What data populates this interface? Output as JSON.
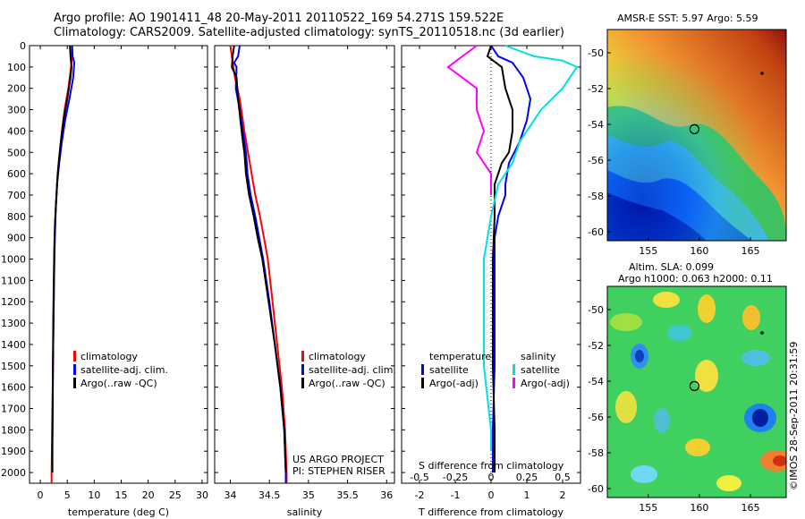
{
  "header": {
    "line1": "Argo profile: AO 1901411_48 20-May-2011 20110522_169 54.271S 159.522E",
    "line2": "Climatology: CARS2009. Satellite-adjusted climatology: synTS_20110518.nc (3d earlier)"
  },
  "colors": {
    "climatology": "#ff0000",
    "satellite": "#0000ff",
    "argo": "#000000",
    "sat_sal": "#00e0e0",
    "argo_sal": "#ff00ff"
  },
  "chart_data": [
    {
      "type": "line",
      "xlabel": "temperature (deg C)",
      "xlim": [
        -2,
        31
      ],
      "ylim": [
        2050,
        0
      ],
      "xticks": [
        0,
        5,
        10,
        15,
        20,
        25,
        30
      ],
      "yticks": [
        0,
        100,
        200,
        300,
        400,
        500,
        600,
        700,
        800,
        900,
        1000,
        1100,
        1200,
        1300,
        1400,
        1500,
        1600,
        1700,
        1800,
        1900,
        2000
      ],
      "legend": {
        "position": "center-right",
        "entries": [
          "climatology",
          "satellite-adj. clim.",
          "Argo(..raw -QC)"
        ]
      },
      "series": [
        {
          "name": "climatology",
          "color": "red",
          "points": [
            [
              5.9,
              0
            ],
            [
              5.9,
              50
            ],
            [
              5.7,
              100
            ],
            [
              5.2,
              200
            ],
            [
              4.5,
              300
            ],
            [
              4.0,
              400
            ],
            [
              3.6,
              500
            ],
            [
              3.2,
              600
            ],
            [
              3.0,
              700
            ],
            [
              2.8,
              800
            ],
            [
              2.7,
              900
            ],
            [
              2.6,
              1000
            ],
            [
              2.5,
              1200
            ],
            [
              2.4,
              1400
            ],
            [
              2.3,
              1600
            ],
            [
              2.2,
              1800
            ],
            [
              2.1,
              2000
            ],
            [
              2.1,
              2050
            ]
          ]
        },
        {
          "name": "satellite-adj. clim.",
          "color": "blue",
          "points": [
            [
              5.9,
              0
            ],
            [
              6.0,
              50
            ],
            [
              6.3,
              80
            ],
            [
              6.1,
              150
            ],
            [
              5.4,
              250
            ],
            [
              4.6,
              350
            ],
            [
              4.0,
              450
            ],
            [
              3.5,
              550
            ],
            [
              3.1,
              650
            ],
            [
              2.9,
              750
            ],
            [
              2.75,
              850
            ],
            [
              2.65,
              950
            ],
            [
              2.55,
              1100
            ],
            [
              2.45,
              1300
            ],
            [
              2.35,
              1500
            ],
            [
              2.3,
              1700
            ],
            [
              2.2,
              1900
            ],
            [
              2.2,
              1980
            ]
          ]
        },
        {
          "name": "Argo(..raw -QC)",
          "color": "black",
          "points": [
            [
              5.5,
              0
            ],
            [
              5.6,
              50
            ],
            [
              5.8,
              100
            ],
            [
              5.6,
              150
            ],
            [
              5.0,
              250
            ],
            [
              4.3,
              350
            ],
            [
              3.8,
              450
            ],
            [
              3.4,
              550
            ],
            [
              3.1,
              650
            ],
            [
              2.9,
              750
            ],
            [
              2.7,
              850
            ],
            [
              2.6,
              950
            ],
            [
              2.5,
              1100
            ],
            [
              2.4,
              1300
            ],
            [
              2.35,
              1500
            ],
            [
              2.3,
              1700
            ],
            [
              2.25,
              1900
            ],
            [
              2.25,
              2000
            ]
          ]
        }
      ]
    },
    {
      "type": "line",
      "xlabel": "salinity",
      "xlim": [
        33.8,
        36.1
      ],
      "ylim": [
        2050,
        0
      ],
      "xticks": [
        34,
        34.5,
        35,
        35.5,
        36
      ],
      "legend": {
        "position": "center-right",
        "entries": [
          "climatology",
          "satellite-adj. clim.",
          "Argo(..raw -QC)"
        ]
      },
      "annotation": [
        "US ARGO PROJECT",
        "PI: STEPHEN RISER"
      ],
      "series": [
        {
          "name": "climatology",
          "color": "red",
          "points": [
            [
              34.0,
              0
            ],
            [
              34.02,
              50
            ],
            [
              34.06,
              150
            ],
            [
              34.12,
              250
            ],
            [
              34.18,
              400
            ],
            [
              34.25,
              550
            ],
            [
              34.32,
              700
            ],
            [
              34.38,
              800
            ],
            [
              34.43,
              900
            ],
            [
              34.48,
              1000
            ],
            [
              34.54,
              1200
            ],
            [
              34.6,
              1400
            ],
            [
              34.66,
              1600
            ],
            [
              34.7,
              1800
            ],
            [
              34.72,
              2000
            ],
            [
              34.72,
              2050
            ]
          ]
        },
        {
          "name": "satellite-adj. clim.",
          "color": "blue",
          "points": [
            [
              34.12,
              0
            ],
            [
              34.1,
              50
            ],
            [
              34.05,
              80
            ],
            [
              34.08,
              100
            ],
            [
              34.07,
              200
            ],
            [
              34.12,
              300
            ],
            [
              34.16,
              400
            ],
            [
              34.2,
              500
            ],
            [
              34.22,
              600
            ],
            [
              34.26,
              700
            ],
            [
              34.32,
              800
            ],
            [
              34.37,
              900
            ],
            [
              34.42,
              1000
            ],
            [
              34.5,
              1200
            ],
            [
              34.57,
              1400
            ],
            [
              34.64,
              1600
            ],
            [
              34.69,
              1800
            ],
            [
              34.71,
              2000
            ],
            [
              34.71,
              2050
            ]
          ]
        },
        {
          "name": "Argo(..raw -QC)",
          "color": "black",
          "points": [
            [
              34.05,
              0
            ],
            [
              34.03,
              50
            ],
            [
              34.02,
              100
            ],
            [
              34.08,
              150
            ],
            [
              34.1,
              250
            ],
            [
              34.13,
              350
            ],
            [
              34.16,
              450
            ],
            [
              34.18,
              500
            ],
            [
              34.2,
              600
            ],
            [
              34.24,
              700
            ],
            [
              34.3,
              800
            ],
            [
              34.35,
              900
            ],
            [
              34.41,
              1000
            ],
            [
              34.49,
              1200
            ],
            [
              34.57,
              1400
            ],
            [
              34.64,
              1600
            ],
            [
              34.69,
              1800
            ],
            [
              34.71,
              2000
            ]
          ]
        }
      ]
    },
    {
      "type": "line",
      "xlabel": "T difference from climatology",
      "xlabel2": "S difference from climatology",
      "xlim": [
        -2.5,
        2.5
      ],
      "ylim": [
        2050,
        0
      ],
      "xticks": [
        -2,
        -1,
        0,
        1,
        2
      ],
      "xticks2": [
        "-0.5",
        "-0.25",
        "0",
        "0.25",
        "0.5"
      ],
      "legend": {
        "position": "bottom-center",
        "headers": [
          "temperature",
          "salinity"
        ],
        "entries": [
          "satellite",
          "Argo(-adj)",
          "satellite",
          "Argo(-adj)"
        ]
      },
      "series": [
        {
          "name": "temperature satellite",
          "color": "blue",
          "points": [
            [
              0.0,
              0
            ],
            [
              0.2,
              50
            ],
            [
              0.6,
              80
            ],
            [
              0.9,
              150
            ],
            [
              1.1,
              250
            ],
            [
              1.0,
              350
            ],
            [
              0.8,
              450
            ],
            [
              0.5,
              550
            ],
            [
              0.4,
              650
            ],
            [
              0.4,
              700
            ],
            [
              0.2,
              800
            ],
            [
              0.1,
              900
            ],
            [
              0.1,
              1000
            ],
            [
              0.1,
              1200
            ],
            [
              0.1,
              1500
            ],
            [
              0.05,
              1800
            ],
            [
              0.05,
              2000
            ]
          ]
        },
        {
          "name": "temperature Argo(-adj)",
          "color": "black",
          "points": [
            [
              0.0,
              0
            ],
            [
              -0.1,
              50
            ],
            [
              0.3,
              100
            ],
            [
              0.4,
              200
            ],
            [
              0.6,
              300
            ],
            [
              0.6,
              400
            ],
            [
              0.5,
              500
            ],
            [
              0.3,
              550
            ],
            [
              0.1,
              650
            ],
            [
              0.1,
              800
            ],
            [
              0.05,
              1000
            ],
            [
              0.05,
              1500
            ],
            [
              0.1,
              1800
            ],
            [
              0.1,
              2000
            ]
          ]
        },
        {
          "name": "salinity satellite",
          "color": "cyan",
          "points": [
            [
              0.1,
              0
            ],
            [
              0.3,
              50
            ],
            [
              0.5,
              70
            ],
            [
              0.6,
              100
            ],
            [
              0.5,
              200
            ],
            [
              0.35,
              300
            ],
            [
              0.2,
              450
            ],
            [
              0.15,
              550
            ],
            [
              0.05,
              650
            ],
            [
              0.0,
              800
            ],
            [
              -0.05,
              1000
            ],
            [
              -0.05,
              1200
            ],
            [
              -0.05,
              1500
            ],
            [
              0.0,
              1800
            ],
            [
              0.0,
              1900
            ]
          ]
        },
        {
          "name": "salinity Argo(-adj)",
          "color": "magenta",
          "points": [
            [
              -0.1,
              0
            ],
            [
              -0.3,
              100
            ],
            [
              -0.2,
              150
            ],
            [
              -0.1,
              200
            ],
            [
              -0.1,
              300
            ],
            [
              -0.05,
              400
            ],
            [
              -0.1,
              500
            ],
            [
              0.0,
              600
            ],
            [
              0.0,
              700
            ]
          ]
        }
      ]
    },
    {
      "type": "heatmap",
      "title": "AMSR-E SST: 5.97 Argo: 5.59",
      "xticks": [
        155,
        160,
        165
      ],
      "yticks": [
        -50,
        -52,
        -54,
        -56,
        -58,
        -60
      ],
      "xlim": [
        151,
        168.5
      ],
      "ylim": [
        -60.5,
        -48.7
      ],
      "marker": {
        "lon": 159.52,
        "lat": -54.27
      }
    },
    {
      "type": "heatmap",
      "title": "Altim. SLA: 0.099",
      "subtitle": "Argo h1000: 0.063 h2000: 0.11",
      "xticks": [
        155,
        160,
        165
      ],
      "yticks": [
        -50,
        -52,
        -54,
        -56,
        -58,
        -60
      ],
      "xlim": [
        151,
        168.5
      ],
      "ylim": [
        -60.5,
        -48.7
      ],
      "marker": {
        "lon": 159.52,
        "lat": -54.27
      }
    }
  ],
  "footer": {
    "watermark": "©IMOS 28-Sep-2011 20:31:59"
  }
}
